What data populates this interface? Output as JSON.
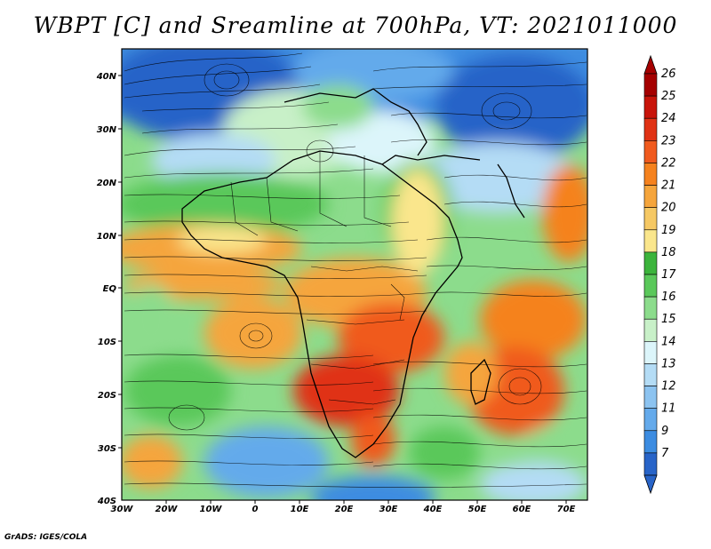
{
  "title": "WBPT [C] and Sreamline at 700hPa, VT: 2021011000",
  "credit": "GrADS: IGES/COLA",
  "lat_labels": [
    "40N",
    "30N",
    "20N",
    "10N",
    "EQ",
    "10S",
    "20S",
    "30S",
    "40S"
  ],
  "lon_labels": [
    "30W",
    "20W",
    "10W",
    "0",
    "10E",
    "20E",
    "30E",
    "40E",
    "50E",
    "60E",
    "70E"
  ],
  "colorbar": {
    "levels": [
      "26",
      "25",
      "24",
      "23",
      "22",
      "21",
      "20",
      "19",
      "18",
      "17",
      "16",
      "15",
      "14",
      "13",
      "12",
      "11",
      "9",
      "7"
    ],
    "colors": [
      "#a50000",
      "#c8140a",
      "#e03214",
      "#f05a1e",
      "#f5821e",
      "#f5a53c",
      "#f5c864",
      "#fae68c",
      "#3cb43c",
      "#5ac85a",
      "#8cdc8c",
      "#c8f0c8",
      "#dcf5fa",
      "#b4dcf5",
      "#8cc3f0",
      "#64aaeb",
      "#3c8ce1",
      "#2864c8"
    ]
  }
}
